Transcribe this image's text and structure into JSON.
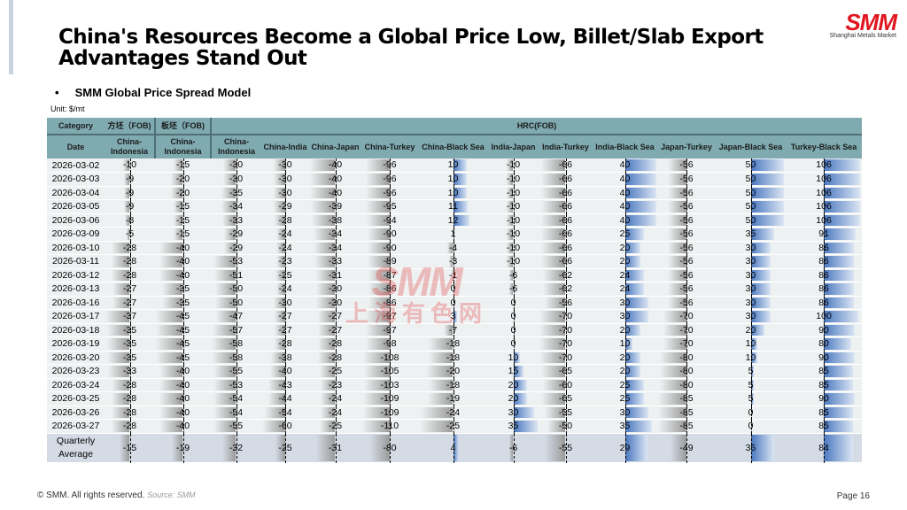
{
  "title": "China's Resources Become a Global Price Low, Billet/Slab Export Advantages Stand Out",
  "logo": {
    "mark": "SMM",
    "sub": "Shanghai Metals Market"
  },
  "section": "SMM Global Price Spread Model",
  "unit": "Unit: $/mt",
  "watermark": {
    "line1": "SMM",
    "line2": "上海有色网"
  },
  "table": {
    "category_label": "Category",
    "date_label": "Date",
    "groups": [
      "方坯（FOB)",
      "板坯（FOB)",
      "HRC(FOB)"
    ],
    "columns": [
      "China-Indonesia",
      "China-Indonesia",
      "China-Indonesia",
      "China-India",
      "China-Japan",
      "China-Turkey",
      "China-Black Sea",
      "India-Japan",
      "India-Turkey",
      "India-Black Sea",
      "Japan-Turkey",
      "Japan-Black Sea",
      "Turkey-Black Sea"
    ],
    "rows": [
      {
        "date": "2026-03-02",
        "values": [
          -10,
          -15,
          -30,
          -30,
          -40,
          -96,
          10,
          -10,
          -66,
          40,
          -56,
          50,
          106
        ]
      },
      {
        "date": "2026-03-03",
        "values": [
          -9,
          -20,
          -30,
          -30,
          -40,
          -96,
          10,
          -10,
          -66,
          40,
          -56,
          50,
          106
        ]
      },
      {
        "date": "2026-03-04",
        "values": [
          -9,
          -20,
          -35,
          -30,
          -40,
          -96,
          10,
          -10,
          -66,
          40,
          -56,
          50,
          106
        ]
      },
      {
        "date": "2026-03-05",
        "values": [
          -9,
          -15,
          -34,
          -29,
          -39,
          -95,
          11,
          -10,
          -66,
          40,
          -56,
          50,
          106
        ]
      },
      {
        "date": "2026-03-06",
        "values": [
          -8,
          -15,
          -33,
          -28,
          -38,
          -94,
          12,
          -10,
          -66,
          40,
          -56,
          50,
          106
        ]
      },
      {
        "date": "2026-03-09",
        "values": [
          -5,
          -15,
          -29,
          -24,
          -34,
          -90,
          1,
          -10,
          -66,
          25,
          -56,
          35,
          91
        ]
      },
      {
        "date": "2026-03-10",
        "values": [
          -28,
          -40,
          -29,
          -24,
          -34,
          -90,
          -4,
          -10,
          -66,
          20,
          -56,
          30,
          86
        ]
      },
      {
        "date": "2026-03-11",
        "values": [
          -28,
          -40,
          -53,
          -23,
          -33,
          -89,
          -3,
          -10,
          -66,
          20,
          -56,
          30,
          86
        ]
      },
      {
        "date": "2026-03-12",
        "values": [
          -28,
          -40,
          -51,
          -25,
          -31,
          -87,
          -1,
          -6,
          -62,
          24,
          -56,
          30,
          86
        ]
      },
      {
        "date": "2026-03-13",
        "values": [
          -27,
          -35,
          -50,
          -24,
          -30,
          -86,
          0,
          -6,
          -62,
          24,
          -56,
          30,
          86
        ]
      },
      {
        "date": "2026-03-16",
        "values": [
          -27,
          -35,
          -50,
          -30,
          -30,
          -86,
          0,
          0,
          -56,
          30,
          -56,
          30,
          86
        ]
      },
      {
        "date": "2026-03-17",
        "values": [
          -37,
          -45,
          -47,
          -27,
          -27,
          -97,
          3,
          0,
          -70,
          30,
          -70,
          30,
          100
        ]
      },
      {
        "date": "2026-03-18",
        "values": [
          -35,
          -45,
          -57,
          -27,
          -27,
          -97,
          -7,
          0,
          -70,
          20,
          -70,
          20,
          90
        ]
      },
      {
        "date": "2026-03-19",
        "values": [
          -35,
          -45,
          -58,
          -28,
          -28,
          -98,
          -18,
          0,
          -70,
          10,
          -70,
          10,
          80
        ]
      },
      {
        "date": "2026-03-20",
        "values": [
          -35,
          -45,
          -58,
          -38,
          -28,
          -108,
          -18,
          10,
          -70,
          20,
          -80,
          10,
          90
        ]
      },
      {
        "date": "2026-03-23",
        "values": [
          -33,
          -40,
          -55,
          -40,
          -25,
          -105,
          -20,
          15,
          -65,
          20,
          -80,
          5,
          85
        ]
      },
      {
        "date": "2026-03-24",
        "values": [
          -28,
          -40,
          -53,
          -43,
          -23,
          -103,
          -18,
          20,
          -60,
          25,
          -80,
          5,
          85
        ]
      },
      {
        "date": "2026-03-25",
        "values": [
          -28,
          -40,
          -54,
          -44,
          -24,
          -109,
          -19,
          20,
          -65,
          25,
          -85,
          5,
          90
        ]
      },
      {
        "date": "2026-03-26",
        "values": [
          -28,
          -40,
          -54,
          -54,
          -24,
          -109,
          -24,
          30,
          -55,
          30,
          -85,
          0,
          85
        ]
      },
      {
        "date": "2026-03-27",
        "values": [
          -28,
          -40,
          -55,
          -60,
          -25,
          -110,
          -25,
          35,
          -50,
          35,
          -85,
          0,
          85
        ]
      }
    ],
    "average": {
      "label_line1": "Quarterly",
      "label_line2": "Average",
      "values": [
        -15,
        -19,
        -32,
        -25,
        -31,
        -80,
        4,
        -6,
        -55,
        29,
        -49,
        35,
        84
      ]
    }
  },
  "footer": {
    "copyright": "© SMM. All rights reserved.",
    "source": "Source: SMM",
    "page": "Page 16"
  }
}
